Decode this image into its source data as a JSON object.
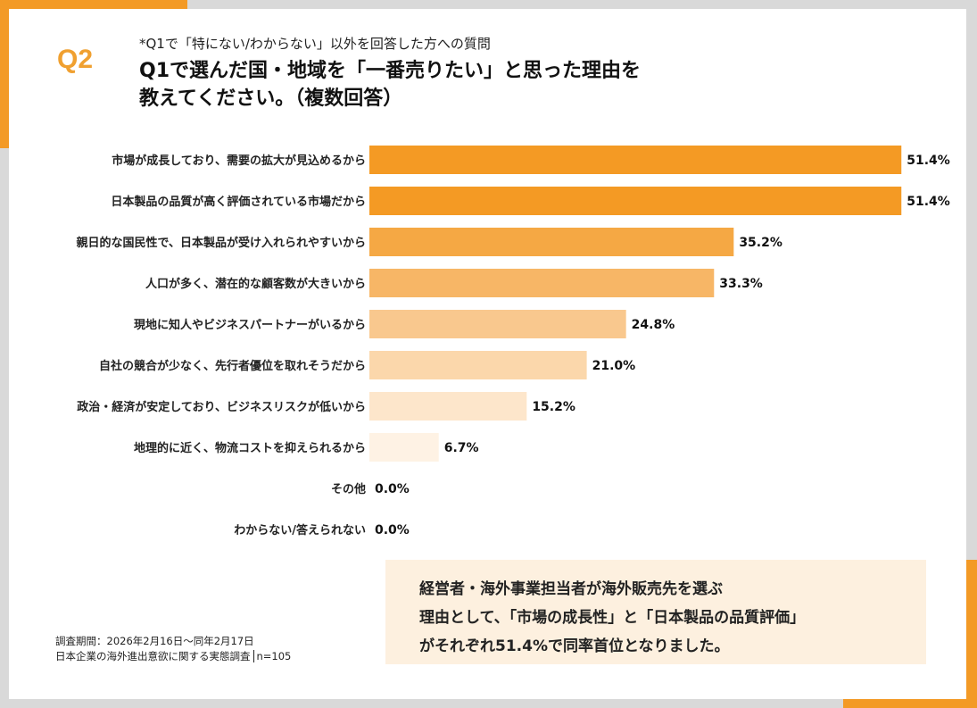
{
  "header": {
    "question_no": "Q2",
    "note": "*Q1で「特にない/わからない」以外を回答した方への質問",
    "title_line1": "Q1で選んだ国・地域を「一番売りたい」と思った理由を",
    "title_line2": "教えてください。（複数回答）"
  },
  "colors": {
    "accent": "#f39a26",
    "border": "#d9d9d9",
    "summary_bg": "#fdf0df"
  },
  "chart_data": {
    "type": "bar",
    "orientation": "horizontal",
    "categories": [
      "市場が成長しており、需要の拡大が見込めるから",
      "日本製品の品質が高く評価されている市場だから",
      "親日的な国民性で、日本製品が受け入れられやすいから",
      "人口が多く、潜在的な顧客数が大きいから",
      "現地に知人やビジネスパートナーがいるから",
      "自社の競合が少なく、先行者優位を取れそうだから",
      "政治・経済が安定しており、ビジネスリスクが低いから",
      "地理的に近く、物流コストを抑えられるから",
      "その他",
      "わからない/答えられない"
    ],
    "values": [
      51.4,
      51.4,
      35.2,
      33.3,
      24.8,
      21.0,
      15.2,
      6.7,
      0.0,
      0.0
    ],
    "value_labels": [
      "51.4%",
      "51.4%",
      "35.2%",
      "33.3%",
      "24.8%",
      "21.0%",
      "15.2%",
      "6.7%",
      "0.0%",
      "0.0%"
    ],
    "bar_colors": [
      "#f49a24",
      "#f49a24",
      "#f5a844",
      "#f7b666",
      "#f9c88e",
      "#fbd7ab",
      "#fde6cb",
      "#fef2e4",
      "#fef2e4",
      "#fef2e4"
    ],
    "unit": "%",
    "grid": false
  },
  "footer": {
    "period": "調査期間：2026年2月16日～同年2月17日",
    "survey": "日本企業の海外進出意欲に関する実態調査",
    "n": "n=105"
  },
  "summary": {
    "line1": "経営者・海外事業担当者が海外販売先を選ぶ",
    "line2": "理由として、「市場の成長性」と「日本製品の品質評価」",
    "line3": "がそれぞれ51.4%で同率首位となりました。"
  }
}
